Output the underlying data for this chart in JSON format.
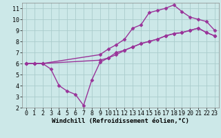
{
  "line1_x": [
    0,
    1,
    2,
    9,
    10,
    11,
    12,
    13,
    14,
    15,
    16,
    17,
    18,
    19,
    20,
    21,
    22,
    23
  ],
  "line1_y": [
    6.0,
    6.0,
    6.0,
    6.3,
    6.5,
    6.8,
    7.2,
    7.5,
    7.8,
    8.0,
    8.2,
    8.5,
    8.7,
    8.8,
    9.0,
    9.2,
    8.8,
    8.5
  ],
  "line2_x": [
    0,
    1,
    2,
    9,
    10,
    11,
    12,
    13,
    14,
    15,
    16,
    17,
    18,
    19,
    20,
    21,
    22,
    23
  ],
  "line2_y": [
    6.0,
    6.0,
    6.0,
    6.8,
    7.3,
    7.7,
    8.2,
    9.2,
    9.5,
    10.6,
    10.8,
    11.0,
    11.3,
    10.7,
    10.2,
    10.0,
    9.8,
    9.0
  ],
  "line3_x": [
    0,
    1,
    2,
    3,
    4,
    5,
    6,
    7,
    8,
    9,
    10,
    11,
    12,
    13,
    14,
    15,
    16,
    17,
    18,
    19,
    20,
    21,
    22,
    23
  ],
  "line3_y": [
    6.0,
    6.0,
    6.0,
    5.5,
    4.0,
    3.5,
    3.2,
    2.2,
    4.5,
    6.1,
    6.5,
    7.0,
    7.2,
    7.5,
    7.8,
    8.0,
    8.2,
    8.5,
    8.7,
    8.8,
    9.0,
    9.2,
    8.8,
    8.5
  ],
  "bg_color": "#cce8e8",
  "grid_color": "#aacccc",
  "line_color": "#993399",
  "xlabel": "Windchill (Refroidissement éolien,°C)",
  "xlim": [
    -0.5,
    23.5
  ],
  "ylim": [
    2,
    11.5
  ],
  "xticks": [
    0,
    1,
    2,
    3,
    4,
    5,
    6,
    7,
    8,
    9,
    10,
    11,
    12,
    13,
    14,
    15,
    16,
    17,
    18,
    19,
    20,
    21,
    22,
    23
  ],
  "yticks": [
    2,
    3,
    4,
    5,
    6,
    7,
    8,
    9,
    10,
    11
  ],
  "marker": "D",
  "markersize": 2.5,
  "linewidth": 1.0,
  "xlabel_fontsize": 6.5,
  "tick_fontsize": 6.0
}
